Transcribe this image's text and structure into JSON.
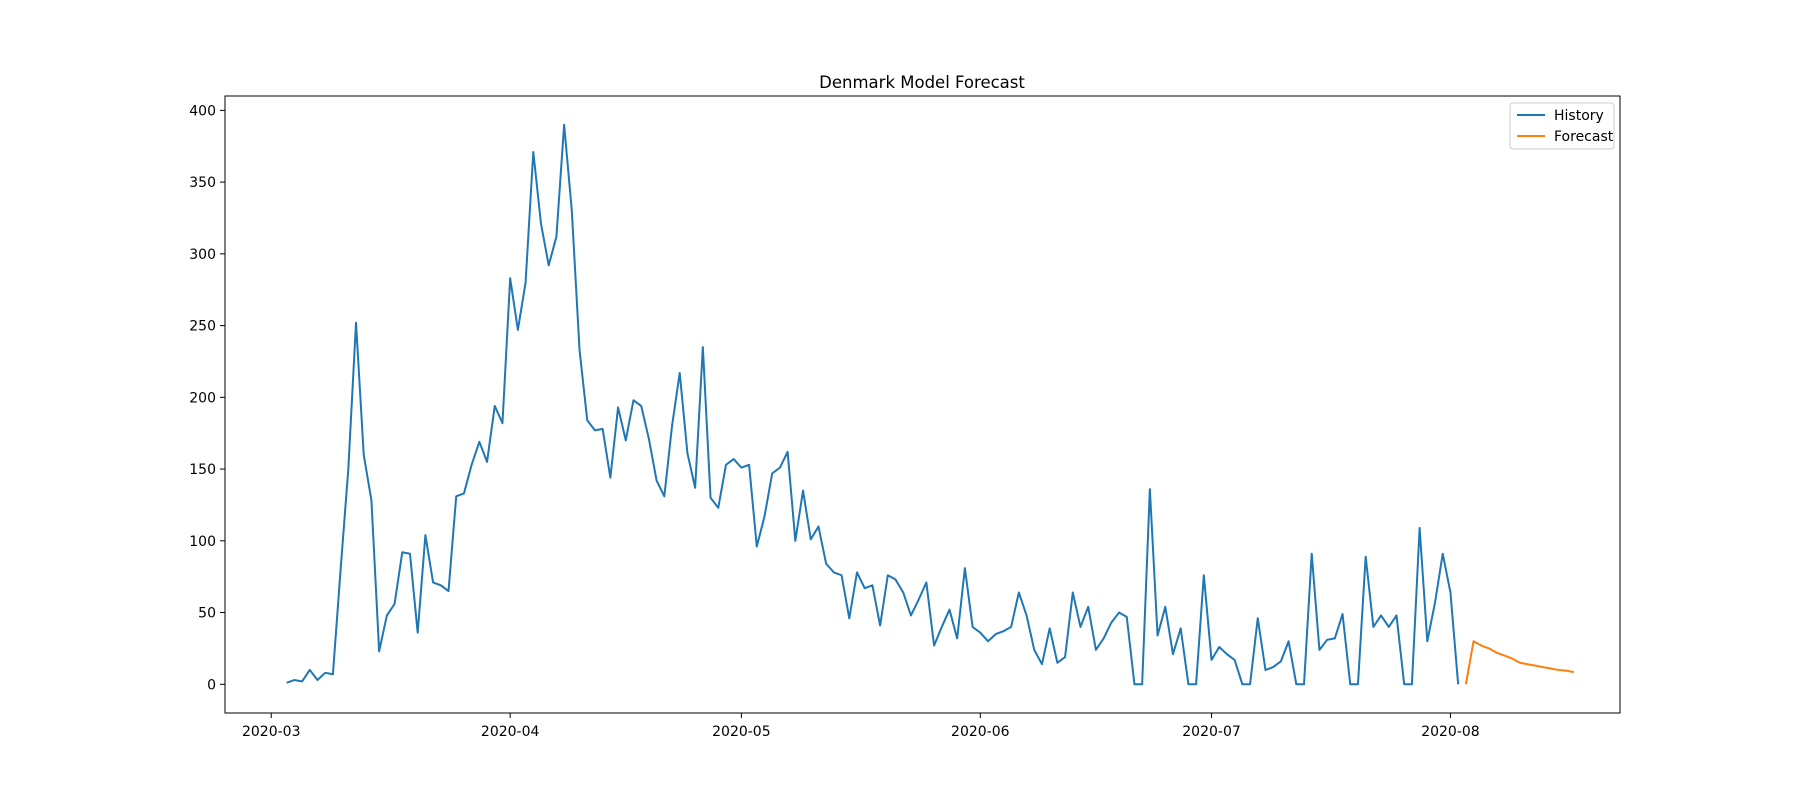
{
  "chart_data": {
    "type": "line",
    "title": "Denmark Model Forecast",
    "xlabel": "",
    "ylabel": "",
    "xlim": [
      "2020-02-24",
      "2020-08-23"
    ],
    "ylim": [
      -20,
      410
    ],
    "x_ticks": [
      "2020-03",
      "2020-04",
      "2020-05",
      "2020-06",
      "2020-07",
      "2020-08"
    ],
    "y_ticks": [
      0,
      50,
      100,
      150,
      200,
      250,
      300,
      350,
      400
    ],
    "grid": false,
    "legend_position": "top-right",
    "series": [
      {
        "name": "History",
        "color": "#1f77b4",
        "start": "2020-03-03",
        "values": [
          1,
          3,
          2,
          10,
          3,
          8,
          7,
          80,
          150,
          252,
          160,
          128,
          23,
          48,
          56,
          92,
          91,
          36,
          104,
          71,
          69,
          65,
          131,
          133,
          153,
          169,
          155,
          194,
          182,
          283,
          247,
          280,
          371,
          321,
          292,
          312,
          390,
          330,
          233,
          184,
          177,
          178,
          144,
          193,
          170,
          198,
          194,
          171,
          142,
          131,
          180,
          217,
          161,
          137,
          235,
          130,
          123,
          153,
          157,
          151,
          153,
          96,
          117,
          147,
          151,
          162,
          100,
          135,
          101,
          110,
          84,
          78,
          76,
          46,
          78,
          67,
          69,
          41,
          76,
          73,
          64,
          48,
          59,
          71,
          27,
          40,
          52,
          32,
          81,
          40,
          36,
          30,
          35,
          37,
          40,
          64,
          48,
          24,
          14,
          39,
          15,
          19,
          64,
          40,
          54,
          24,
          32,
          43,
          50,
          47,
          0,
          0,
          136,
          34,
          54,
          21,
          39,
          0,
          0,
          76,
          17,
          26,
          21,
          17,
          0,
          0,
          46,
          10,
          12,
          16,
          30,
          0,
          0,
          91,
          24,
          31,
          32,
          49,
          0,
          0,
          89,
          40,
          48,
          40,
          48,
          0,
          0,
          109,
          30,
          57,
          91,
          64,
          0
        ]
      },
      {
        "name": "Forecast",
        "color": "#ff7f0e",
        "start": "2020-08-03",
        "values": [
          0,
          30,
          27,
          25,
          22,
          20,
          18,
          15,
          14,
          13,
          12,
          11,
          10,
          9.5,
          8.5
        ]
      }
    ]
  }
}
